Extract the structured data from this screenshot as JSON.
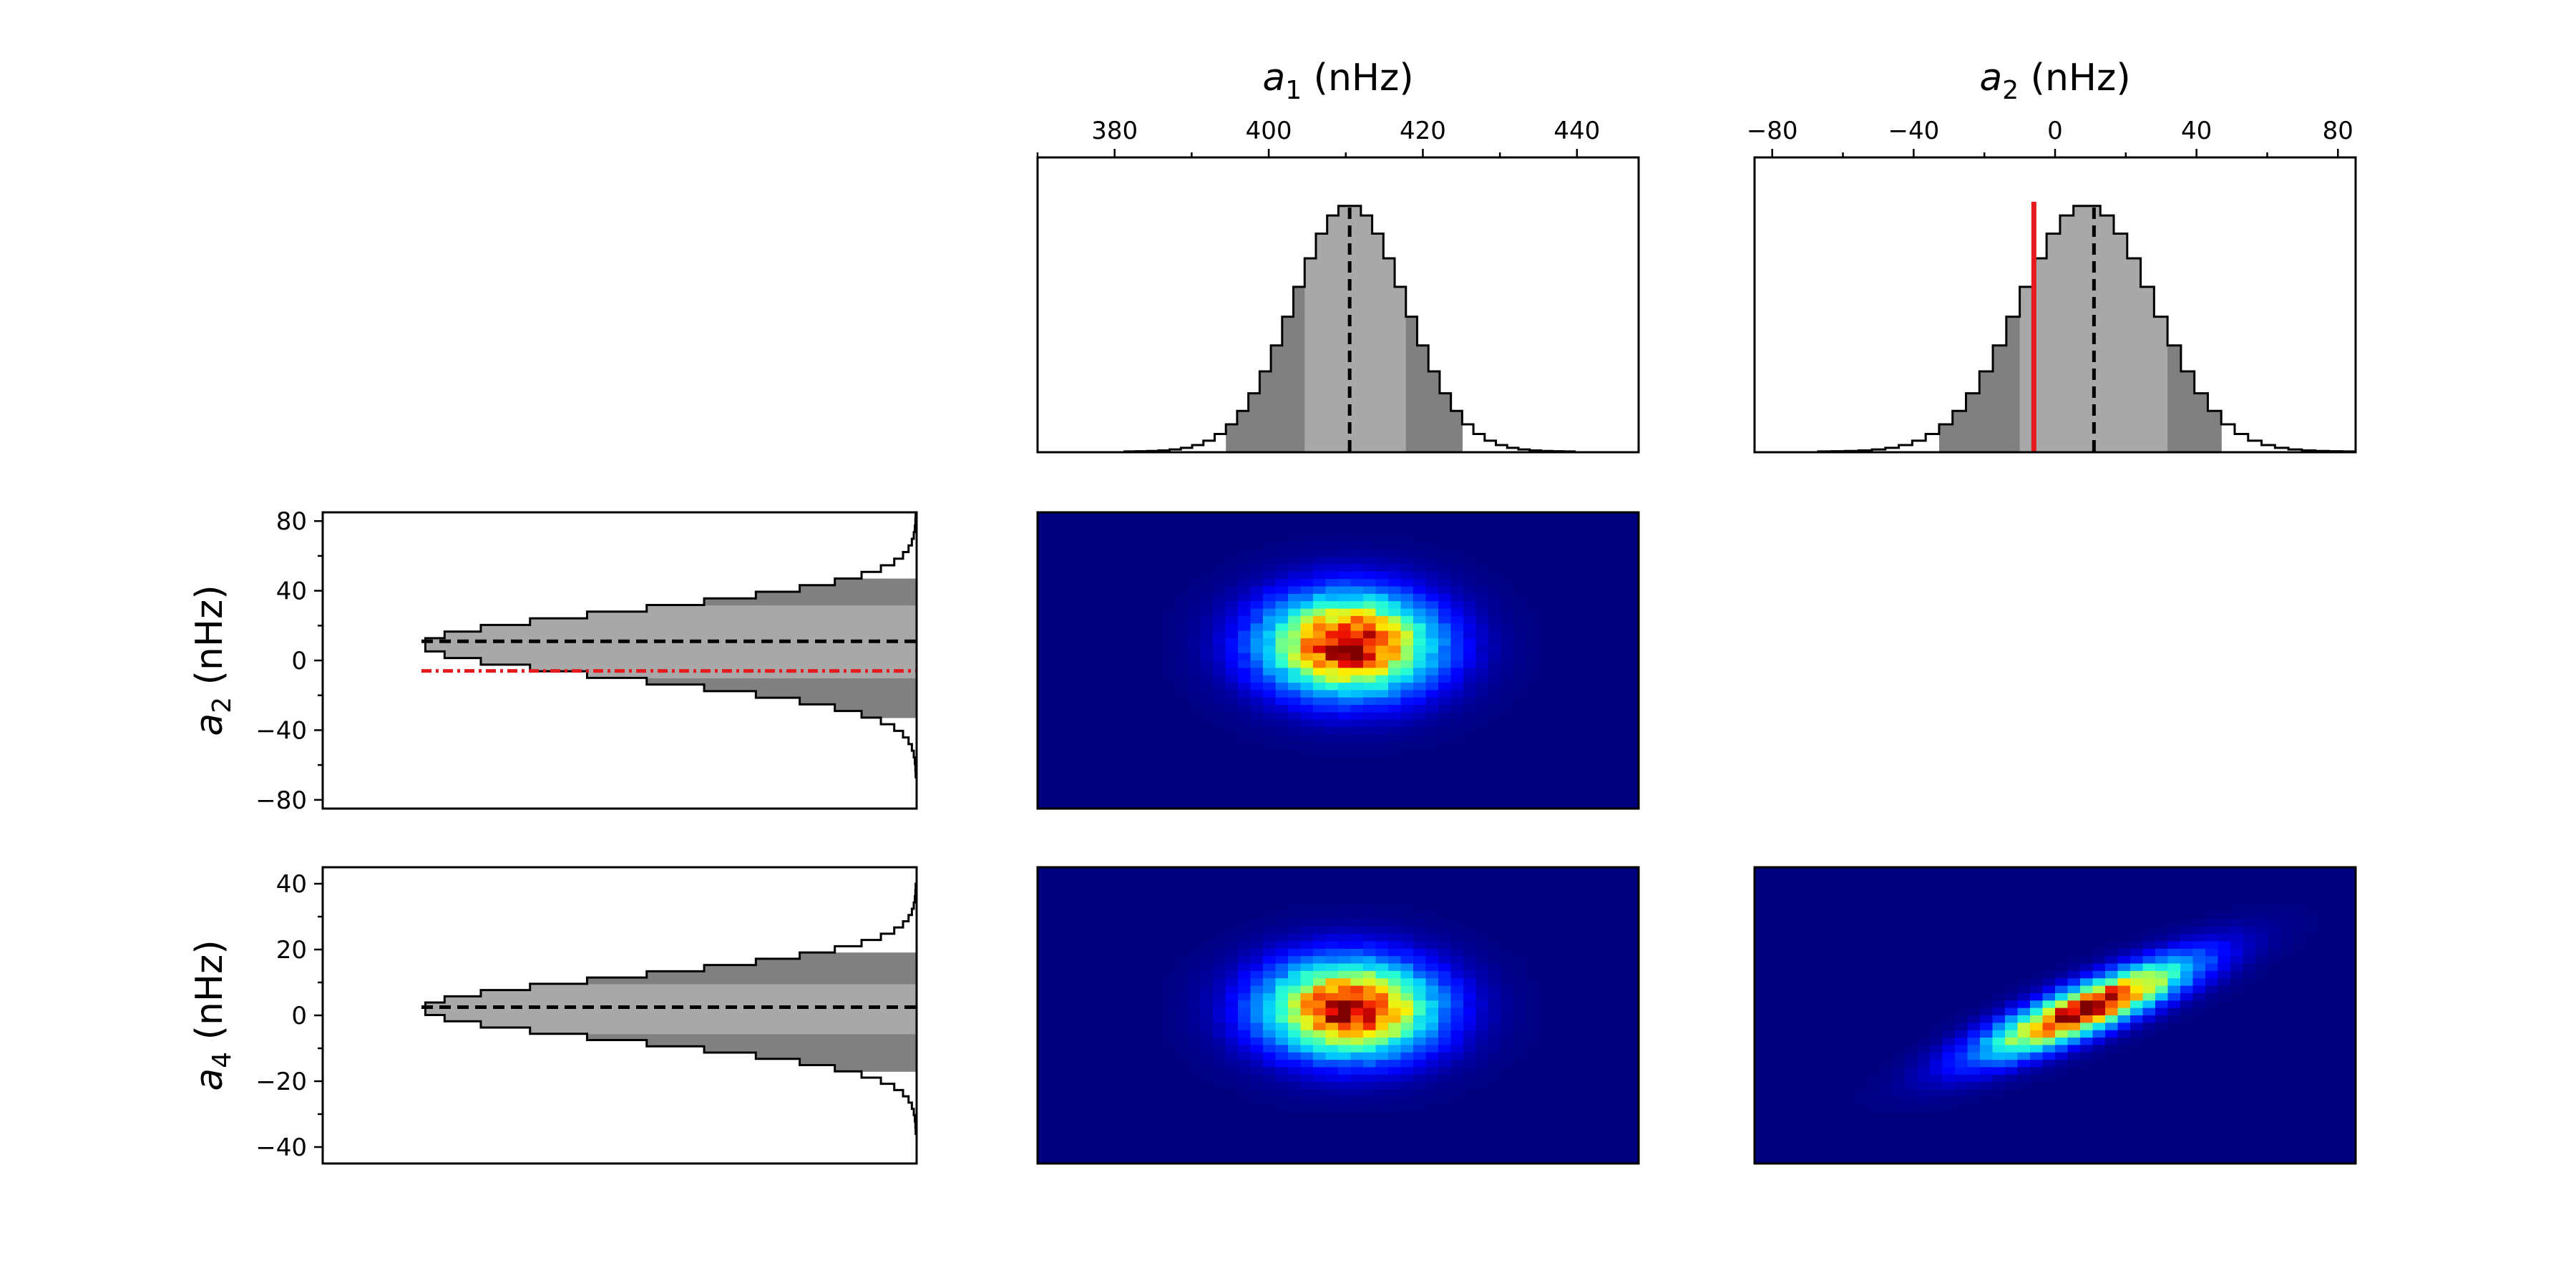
{
  "chart_data": {
    "type": "corner",
    "title": "",
    "parameters": [
      {
        "key": "a1",
        "symbol": "a",
        "subscript": "1",
        "unit": "(nHz)",
        "range": [
          370,
          448
        ],
        "ticks": [
          380,
          400,
          420,
          440
        ],
        "median": 410.5,
        "sigma1": [
          404,
          418
        ],
        "sigma2": [
          395,
          425
        ],
        "mean": 410.5,
        "sd": 7.3
      },
      {
        "key": "a2",
        "symbol": "a",
        "subscript": "2",
        "unit": "(nHz)",
        "range": [
          -85,
          85
        ],
        "ticks": [
          -80,
          -40,
          0,
          40,
          80
        ],
        "median": 11,
        "sigma1": [
          -10,
          31
        ],
        "sigma2": [
          -31,
          47
        ],
        "mean": 9,
        "sd": 19,
        "reference": -6
      },
      {
        "key": "a4",
        "symbol": "a",
        "subscript": "4",
        "unit": "(nHz)",
        "range": [
          -45,
          45
        ],
        "ticks": [
          -40,
          -20,
          0,
          20,
          40
        ],
        "median": 2.5,
        "sigma1": [
          -6,
          10
        ],
        "sigma2": [
          -17,
          20
        ],
        "mean": 2,
        "sd": 9.5
      }
    ],
    "panels": [
      {
        "kind": "hist",
        "param": "a1",
        "position": "top-middle"
      },
      {
        "kind": "hist",
        "param": "a2",
        "position": "top-right",
        "reference_line": -6
      },
      {
        "kind": "hist-horizontal",
        "param": "a2",
        "position": "middle-left",
        "reference_line": -6
      },
      {
        "kind": "hist-horizontal",
        "param": "a4",
        "position": "bottom-left"
      },
      {
        "kind": "density2d",
        "x": "a1",
        "y": "a2",
        "position": "middle-center",
        "correlation": 0.0
      },
      {
        "kind": "density2d",
        "x": "a1",
        "y": "a4",
        "position": "bottom-center",
        "correlation": 0.0
      },
      {
        "kind": "density2d",
        "x": "a2",
        "y": "a4",
        "position": "bottom-right",
        "correlation": 0.85
      }
    ],
    "colors": {
      "outer_fill": "#ffffff",
      "sigma2_fill": "#808080",
      "sigma1_fill": "#a8a8a8",
      "median_line": "#000000",
      "reference_line": "#e41a1c",
      "colormap": [
        "#00007f",
        "#0000ff",
        "#007fff",
        "#00ffff",
        "#7fff7f",
        "#ffff00",
        "#ff7f00",
        "#ff0000",
        "#7f0000"
      ]
    }
  }
}
